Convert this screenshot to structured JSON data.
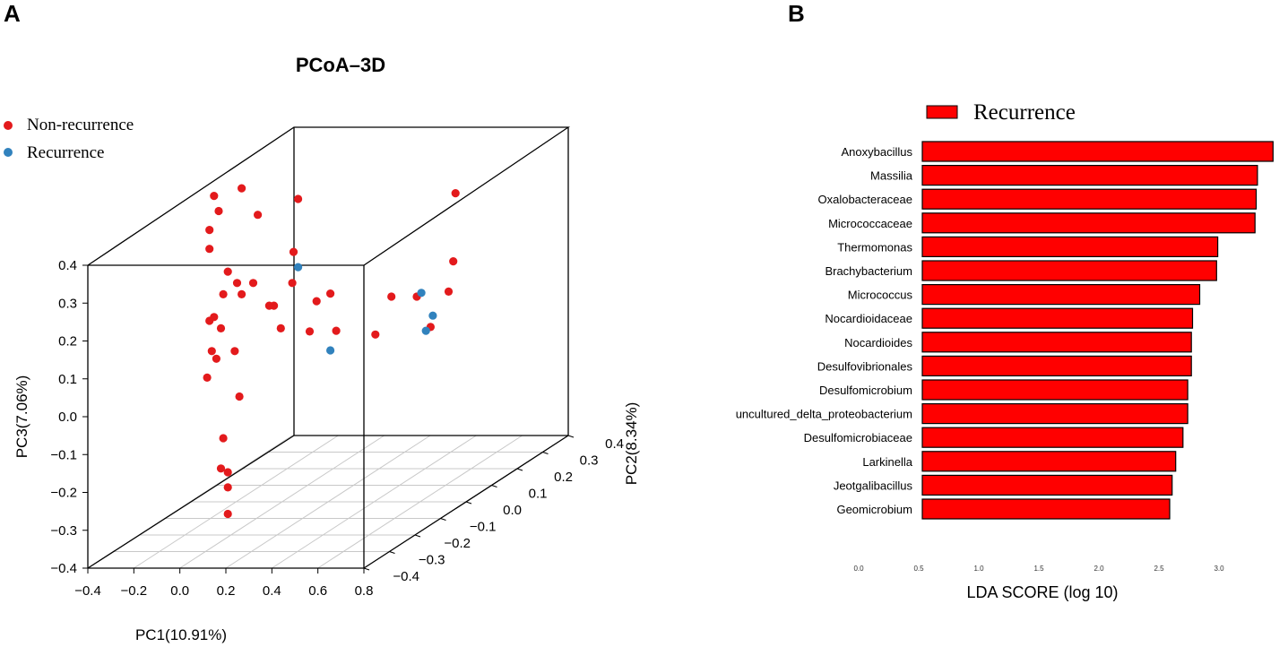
{
  "panel_a": {
    "label": "A",
    "chart_data": {
      "type": "scatter",
      "title": "PCoA–3D",
      "xlabel": "PC1(10.91%)",
      "ylabel": "PC2(8.34%)",
      "zlabel": "PC3(7.06%)",
      "xlim": [
        -0.4,
        0.8
      ],
      "ylim": [
        -0.4,
        0.4
      ],
      "zlim": [
        -0.4,
        0.4
      ],
      "x_ticks": [
        "−0.4",
        "−0.2",
        "0.0",
        "0.2",
        "0.4",
        "0.6",
        "0.8"
      ],
      "y_ticks": [
        "−0.4",
        "−0.3",
        "−0.2",
        "−0.1",
        "0.0",
        "0.1",
        "0.2",
        "0.3",
        "0.4"
      ],
      "z_ticks": [
        "−0.4",
        "−0.3",
        "−0.2",
        "−0.1",
        "0.0",
        "0.1",
        "0.2",
        "0.3",
        "0.4"
      ],
      "legend_position": "top-left",
      "series": [
        {
          "name": "Non-recurrence",
          "color": "#e31a1c",
          "points": [
            [
              0.31,
              0.4,
              0.24
            ],
            [
              0.3,
              0.4,
              0.06
            ],
            [
              0.28,
              0.4,
              -0.02
            ],
            [
              0.07,
              0.0,
              0.4
            ],
            [
              -0.07,
              -0.05,
              0.2
            ],
            [
              0.05,
              0.0,
              0.26
            ],
            [
              0.1,
              -0.05,
              0.2
            ],
            [
              0.15,
              0.0,
              0.13
            ],
            [
              0.02,
              -0.05,
              0.14
            ],
            [
              0.05,
              -0.05,
              0.08
            ],
            [
              0.0,
              -0.05,
              0.14
            ],
            [
              0.12,
              0.0,
              0.05
            ],
            [
              0.18,
              0.05,
              0.03
            ],
            [
              -0.14,
              -0.05,
              0.2
            ],
            [
              -0.12,
              -0.05,
              0.17
            ],
            [
              -0.18,
              -0.05,
              0.23
            ],
            [
              -0.2,
              -0.05,
              0.17
            ],
            [
              -0.21,
              -0.05,
              0.08
            ],
            [
              -0.24,
              -0.05,
              0.11
            ],
            [
              -0.23,
              -0.05,
              0.0
            ],
            [
              -0.26,
              -0.05,
              0.1
            ],
            [
              -0.25,
              -0.05,
              0.02
            ],
            [
              -0.27,
              -0.05,
              -0.05
            ],
            [
              -0.15,
              -0.05,
              0.02
            ],
            [
              -0.13,
              -0.05,
              -0.1
            ],
            [
              -0.26,
              -0.05,
              0.34
            ],
            [
              -0.26,
              -0.05,
              0.29
            ],
            [
              -0.24,
              -0.05,
              0.43
            ],
            [
              -0.22,
              -0.05,
              0.39
            ],
            [
              -0.12,
              -0.05,
              0.45
            ],
            [
              -0.05,
              -0.05,
              0.38
            ],
            [
              0.21,
              0.0,
              0.15
            ],
            [
              0.35,
              0.05,
              0.02
            ],
            [
              0.42,
              0.05,
              0.12
            ],
            [
              0.53,
              0.05,
              0.12
            ],
            [
              0.59,
              0.05,
              0.04
            ],
            [
              -0.2,
              -0.05,
              -0.21
            ],
            [
              -0.21,
              -0.05,
              -0.29
            ],
            [
              -0.18,
              -0.05,
              -0.3
            ],
            [
              -0.18,
              -0.05,
              -0.34
            ],
            [
              -0.18,
              -0.05,
              -0.41
            ]
          ]
        },
        {
          "name": "Recurrence",
          "color": "#3182bd",
          "points": [
            [
              0.07,
              0.0,
              0.22
            ],
            [
              0.21,
              0.0,
              0.0
            ],
            [
              0.55,
              0.05,
              0.13
            ],
            [
              0.6,
              0.05,
              0.07
            ],
            [
              0.57,
              0.05,
              0.03
            ]
          ]
        }
      ]
    }
  },
  "panel_b": {
    "label": "B",
    "chart_data": {
      "type": "bar",
      "orientation": "horizontal",
      "legend": "Recurrence",
      "legend_color": "#ff0000",
      "xlabel": "LDA SCORE (log 10)",
      "xlim": [
        0.0,
        3.5
      ],
      "x_ticks": [
        "0.0",
        "0.5",
        "1.0",
        "1.5",
        "2.0",
        "2.5",
        "3.0"
      ],
      "categories": [
        "Anoxybacillus",
        "Massilia",
        "Oxalobacteraceae",
        "Micrococcaceae",
        "Thermomonas",
        "Brachybacterium",
        "Micrococcus",
        "Nocardioidaceae",
        "Nocardioides",
        "Desulfovibrionales",
        "Desulfomicrobium",
        "uncultured_delta_proteobacterium",
        "Desulfomicrobiaceae",
        "Larkinella",
        "Jeotgalibacillus",
        "Geomicrobium"
      ],
      "values": [
        3.45,
        3.32,
        3.31,
        3.3,
        2.99,
        2.98,
        2.84,
        2.78,
        2.77,
        2.77,
        2.74,
        2.74,
        2.7,
        2.64,
        2.61,
        2.59
      ]
    }
  }
}
